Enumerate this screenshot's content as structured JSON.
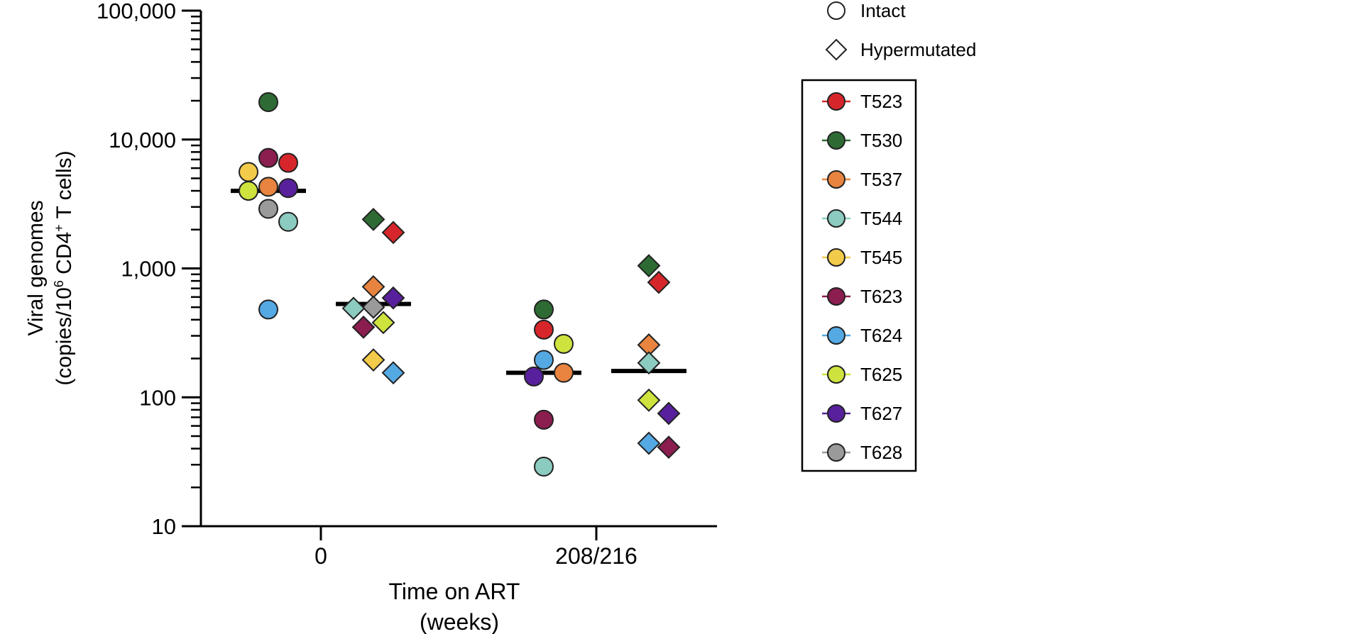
{
  "chart_data": {
    "type": "scatter",
    "title": "",
    "ylabel_line1": "Viral genomes",
    "ylabel_line2_prefix": "(copies/10",
    "ylabel_line2_sup1": "6",
    "ylabel_line2_mid": " CD4",
    "ylabel_line2_sup2": "+",
    "ylabel_line2_suffix": " T cells)",
    "xlabel_line1": "Time on ART",
    "xlabel_line2": "(weeks)",
    "y_scale": "log",
    "ylim": [
      10,
      100000
    ],
    "yticks": [
      {
        "value": 10,
        "label": "10"
      },
      {
        "value": 100,
        "label": "100"
      },
      {
        "value": 1000,
        "label": "1,000"
      },
      {
        "value": 10000,
        "label": "10,000"
      },
      {
        "value": 100000,
        "label": "100,000"
      }
    ],
    "categories": [
      "0",
      "208/216"
    ],
    "shape_legend": [
      {
        "shape": "circle",
        "label": "Intact"
      },
      {
        "shape": "diamond",
        "label": "Hypermutated"
      }
    ],
    "participants": [
      {
        "id": "T523",
        "color": "#d7262b"
      },
      {
        "id": "T530",
        "color": "#2e6b34"
      },
      {
        "id": "T537",
        "color": "#e8843f"
      },
      {
        "id": "T544",
        "color": "#8ccbbf"
      },
      {
        "id": "T545",
        "color": "#f3cb4a"
      },
      {
        "id": "T623",
        "color": "#8b1d4f"
      },
      {
        "id": "T624",
        "color": "#55a9e3"
      },
      {
        "id": "T625",
        "color": "#cfe33e"
      },
      {
        "id": "T627",
        "color": "#58209c"
      },
      {
        "id": "T628",
        "color": "#9a9a9a"
      }
    ],
    "groups": [
      {
        "category": "0",
        "type": "intact",
        "median": 4000,
        "points": [
          {
            "participant": "T530",
            "value": 19500
          },
          {
            "participant": "T623",
            "value": 7200
          },
          {
            "participant": "T523",
            "value": 6600
          },
          {
            "participant": "T545",
            "value": 5600
          },
          {
            "participant": "T537",
            "value": 4300
          },
          {
            "participant": "T627",
            "value": 4200
          },
          {
            "participant": "T625",
            "value": 4000
          },
          {
            "participant": "T628",
            "value": 2900
          },
          {
            "participant": "T544",
            "value": 2300
          },
          {
            "participant": "T624",
            "value": 480
          }
        ]
      },
      {
        "category": "0",
        "type": "hypermutated",
        "median": 530,
        "points": [
          {
            "participant": "T530",
            "value": 2400
          },
          {
            "participant": "T523",
            "value": 1900
          },
          {
            "participant": "T537",
            "value": 720
          },
          {
            "participant": "T627",
            "value": 590
          },
          {
            "participant": "T628",
            "value": 500
          },
          {
            "participant": "T544",
            "value": 490
          },
          {
            "participant": "T625",
            "value": 380
          },
          {
            "participant": "T623",
            "value": 350
          },
          {
            "participant": "T545",
            "value": 195
          },
          {
            "participant": "T624",
            "value": 155
          }
        ]
      },
      {
        "category": "208/216",
        "type": "intact",
        "median": 155,
        "points": [
          {
            "participant": "T530",
            "value": 480
          },
          {
            "participant": "T523",
            "value": 335
          },
          {
            "participant": "T625",
            "value": 260
          },
          {
            "participant": "T624",
            "value": 195
          },
          {
            "participant": "T537",
            "value": 155
          },
          {
            "participant": "T627",
            "value": 145
          },
          {
            "participant": "T623",
            "value": 67
          },
          {
            "participant": "T544",
            "value": 29
          }
        ]
      },
      {
        "category": "208/216",
        "type": "hypermutated",
        "median": 160,
        "points": [
          {
            "participant": "T530",
            "value": 1050
          },
          {
            "participant": "T523",
            "value": 780
          },
          {
            "participant": "T537",
            "value": 255
          },
          {
            "participant": "T544",
            "value": 185
          },
          {
            "participant": "T625",
            "value": 95
          },
          {
            "participant": "T627",
            "value": 75
          },
          {
            "participant": "T624",
            "value": 44
          },
          {
            "participant": "T623",
            "value": 41
          }
        ]
      }
    ]
  }
}
